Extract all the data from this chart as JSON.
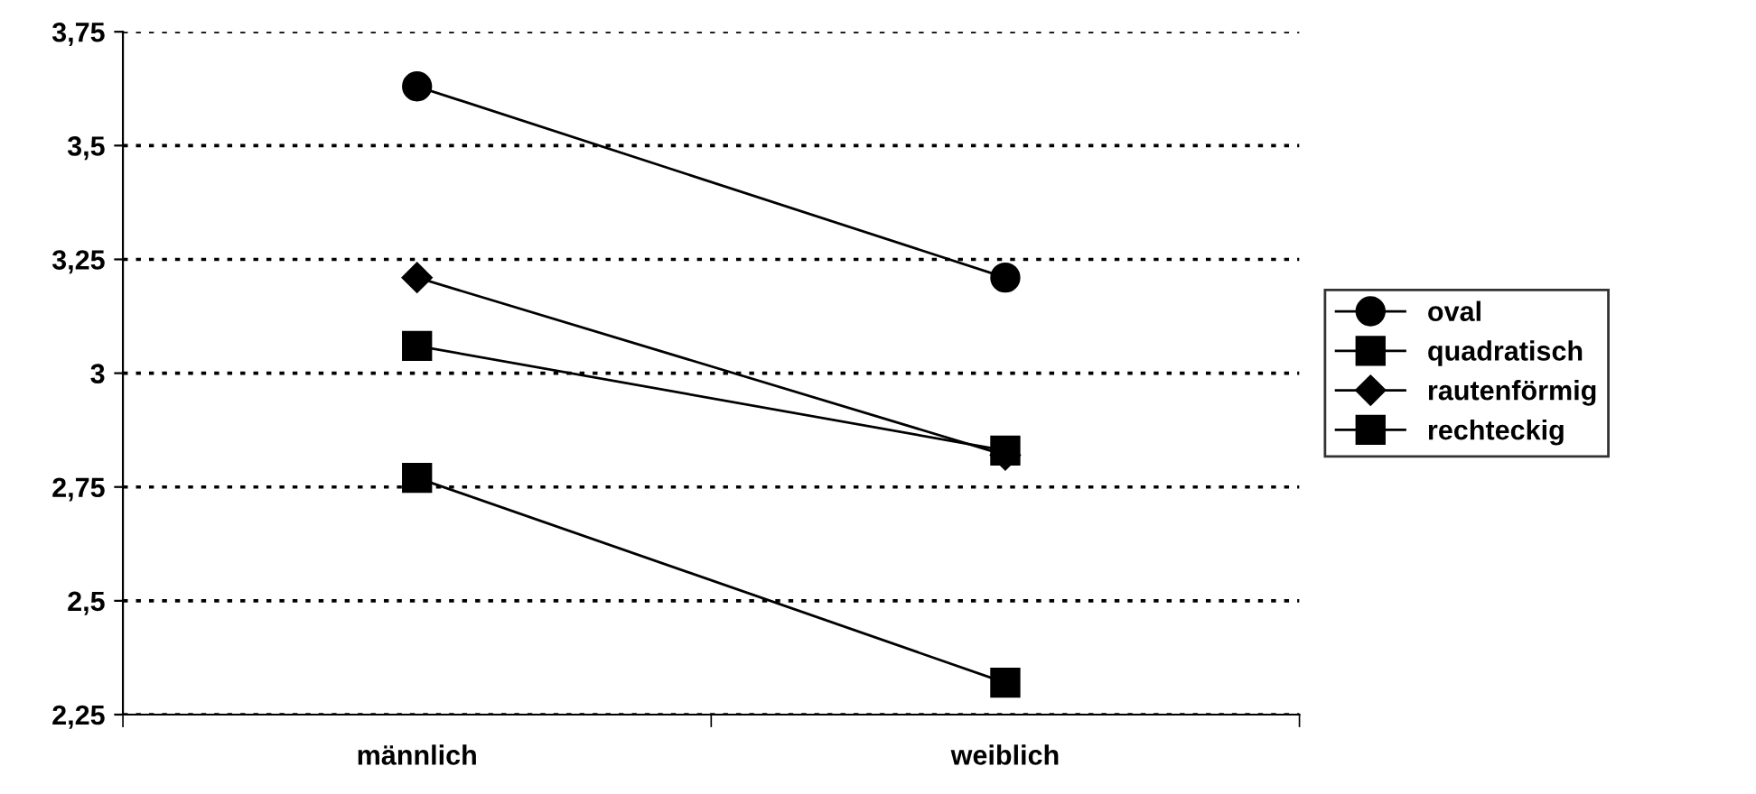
{
  "chart_data": {
    "type": "line",
    "categories": [
      "männlich",
      "weiblich"
    ],
    "series": [
      {
        "name": "oval",
        "color": "#000000",
        "marker": "circle",
        "values": [
          3.63,
          3.21
        ]
      },
      {
        "name": "quadratisch",
        "color": "#000000",
        "marker": "square",
        "values": [
          3.06,
          2.83
        ]
      },
      {
        "name": "rautenförmig",
        "color": "#000000",
        "marker": "diamond",
        "values": [
          3.21,
          2.82
        ]
      },
      {
        "name": "rechteckig",
        "color": "#000000",
        "marker": "square",
        "values": [
          2.77,
          2.32
        ]
      }
    ],
    "ylim": [
      2.25,
      3.75
    ],
    "yticks": [
      {
        "value": 2.25,
        "label": "2,25"
      },
      {
        "value": 2.5,
        "label": "2,5"
      },
      {
        "value": 2.75,
        "label": "2,75"
      },
      3,
      {
        "value": 3.25,
        "label": "3,25"
      },
      {
        "value": 3.5,
        "label": "3,5"
      },
      {
        "value": 3.75,
        "label": "3,75"
      }
    ],
    "grid": "y",
    "legend": "right",
    "line_style": "solid"
  }
}
